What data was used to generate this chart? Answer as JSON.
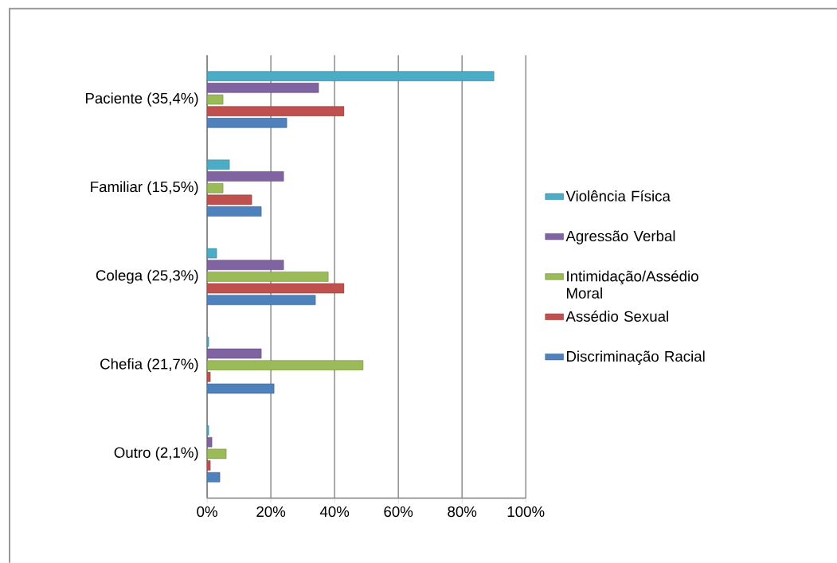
{
  "chart_data": {
    "type": "bar",
    "orientation": "horizontal",
    "categories": [
      "Paciente (35,4%)",
      "Familiar (15,5%)",
      "Colega (25,3%)",
      "Chefia (21,7%)",
      "Outro (2,1%)"
    ],
    "series": [
      {
        "name": "Violência Física",
        "color": "#4bacc6",
        "values": [
          90,
          7,
          3,
          0.5,
          0.5
        ]
      },
      {
        "name": "Agressão Verbal",
        "color": "#8064a2",
        "values": [
          35,
          24,
          24,
          17,
          1.5
        ]
      },
      {
        "name": "Intimidação/Assédio Moral",
        "color": "#9bbb59",
        "values": [
          5,
          5,
          38,
          49,
          6
        ]
      },
      {
        "name": "Assédio Sexual",
        "color": "#c0504d",
        "values": [
          43,
          14,
          43,
          1,
          1
        ]
      },
      {
        "name": "Discriminação Racial",
        "color": "#4f81bd",
        "values": [
          25,
          17,
          34,
          21,
          4
        ]
      }
    ],
    "xlim": [
      0,
      100
    ],
    "xticks": [
      {
        "value": 0,
        "label": "0%"
      },
      {
        "value": 20,
        "label": "20%"
      },
      {
        "value": 40,
        "label": "40%"
      },
      {
        "value": 60,
        "label": "60%"
      },
      {
        "value": 80,
        "label": "80%"
      },
      {
        "value": 100,
        "label": "100%"
      }
    ],
    "grid": "x",
    "legend": "right"
  }
}
